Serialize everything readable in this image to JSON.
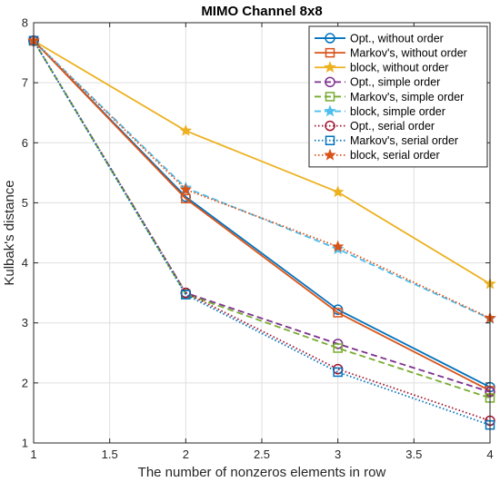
{
  "chart_data": {
    "type": "line",
    "title": "MIMO Channel 8x8",
    "xlabel": "The number of nonzeros elements in row",
    "ylabel": "Kulbak's distance",
    "xlim": [
      1,
      4
    ],
    "ylim": [
      1,
      8
    ],
    "xticks": [
      1,
      1.5,
      2,
      2.5,
      3,
      3.5,
      4
    ],
    "yticks": [
      1,
      2,
      3,
      4,
      5,
      6,
      7,
      8
    ],
    "xtick_labels": [
      "1",
      "1.5",
      "2",
      "2.5",
      "3",
      "3.5",
      "4"
    ],
    "ytick_labels": [
      "1",
      "2",
      "3",
      "4",
      "5",
      "6",
      "7",
      "8"
    ],
    "grid": true,
    "legend_position": "top-right",
    "x": [
      1,
      2,
      3,
      4
    ],
    "series": [
      {
        "name": "Opt., without order",
        "values": [
          7.7,
          5.1,
          3.22,
          1.93
        ],
        "color": "#0072bd",
        "dash": "solid",
        "marker": "circle"
      },
      {
        "name": "Markov's, without order",
        "values": [
          7.7,
          5.07,
          3.17,
          1.87
        ],
        "color": "#d95319",
        "dash": "solid",
        "marker": "square"
      },
      {
        "name": "block, without order",
        "values": [
          7.7,
          6.2,
          5.18,
          3.65
        ],
        "color": "#edb120",
        "dash": "solid",
        "marker": "star"
      },
      {
        "name": "Opt., simple order",
        "values": [
          7.7,
          3.5,
          2.65,
          1.85
        ],
        "color": "#7e2f8e",
        "dash": "dashed",
        "marker": "circle"
      },
      {
        "name": "Markov's, simple order",
        "values": [
          7.7,
          3.48,
          2.58,
          1.75
        ],
        "color": "#77ac30",
        "dash": "dashed",
        "marker": "square"
      },
      {
        "name": "block, simple order",
        "values": [
          7.7,
          5.25,
          4.23,
          3.07
        ],
        "color": "#4dbeee",
        "dash": "dashed",
        "marker": "star"
      },
      {
        "name": "Opt., serial order",
        "values": [
          7.7,
          3.5,
          2.23,
          1.37
        ],
        "color": "#a2142f",
        "dash": "dotted",
        "marker": "circle"
      },
      {
        "name": "Markov's, serial order",
        "values": [
          7.7,
          3.47,
          2.18,
          1.3
        ],
        "color": "#0072bd",
        "dash": "dotted",
        "marker": "square"
      },
      {
        "name": "block, serial order",
        "values": [
          7.7,
          5.22,
          4.27,
          3.08
        ],
        "color": "#d95319",
        "dash": "dotted",
        "marker": "star"
      }
    ]
  }
}
